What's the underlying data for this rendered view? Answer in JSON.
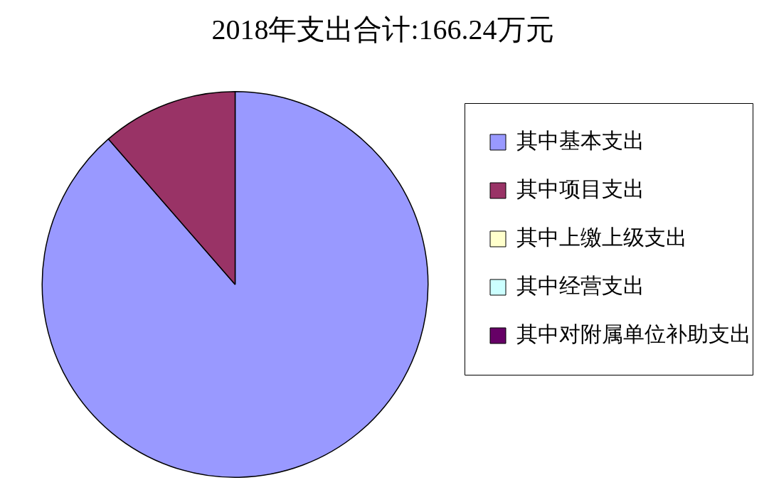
{
  "chart_data": {
    "type": "pie",
    "title": "2018年支出合计:166.24万元",
    "categories": [
      "其中基本支出",
      "其中项目支出",
      "其中上缴上级支出",
      "其中经营支出",
      "其中对附属单位补助支出"
    ],
    "values": [
      88.6,
      11.4,
      0,
      0,
      0
    ],
    "colors": [
      "#9999ff",
      "#993366",
      "#ffffcc",
      "#ccffff",
      "#660066"
    ],
    "legend": "right"
  }
}
